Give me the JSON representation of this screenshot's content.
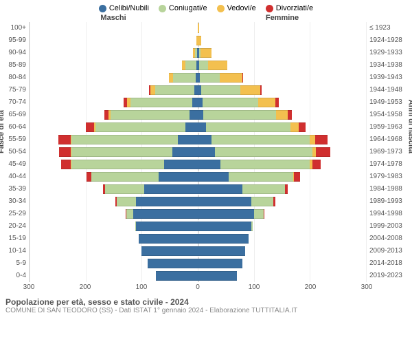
{
  "legend": [
    {
      "label": "Celibi/Nubili",
      "color": "#3b6fa0"
    },
    {
      "label": "Coniugati/e",
      "color": "#b8d49b"
    },
    {
      "label": "Vedovi/e",
      "color": "#f3c04f"
    },
    {
      "label": "Divorziati/e",
      "color": "#d02f2f"
    }
  ],
  "headers": {
    "left": "Maschi",
    "right": "Femmine"
  },
  "axis_labels": {
    "left": "Fasce di età",
    "right": "Anni di nascita"
  },
  "footer": {
    "title": "Popolazione per età, sesso e stato civile - 2024",
    "subtitle": "COMUNE DI SAN TEODORO (SS) - Dati ISTAT 1° gennaio 2024 - Elaborazione TUTTITALIA.IT"
  },
  "xaxis": {
    "max": 300,
    "ticks": [
      300,
      200,
      100,
      0,
      100,
      200,
      300
    ]
  },
  "age_groups": [
    "100+",
    "95-99",
    "90-94",
    "85-89",
    "80-84",
    "75-79",
    "70-74",
    "65-69",
    "60-64",
    "55-59",
    "50-54",
    "45-49",
    "40-44",
    "35-39",
    "30-34",
    "25-29",
    "20-24",
    "15-19",
    "10-14",
    "5-9",
    "0-4"
  ],
  "birth_years": [
    "≤ 1923",
    "1924-1928",
    "1929-1933",
    "1934-1938",
    "1939-1943",
    "1944-1948",
    "1949-1953",
    "1954-1958",
    "1959-1963",
    "1964-1968",
    "1969-1973",
    "1974-1978",
    "1979-1983",
    "1984-1988",
    "1989-1993",
    "1994-1998",
    "1999-2003",
    "2004-2008",
    "2009-2013",
    "2014-2018",
    "2019-2023"
  ],
  "rows": [
    {
      "m": {
        "single": 0,
        "married": 0,
        "widowed": 0,
        "divorced": 0
      },
      "f": {
        "single": 0,
        "married": 0,
        "widowed": 2,
        "divorced": 0
      }
    },
    {
      "m": {
        "single": 0,
        "married": 0,
        "widowed": 2,
        "divorced": 0
      },
      "f": {
        "single": 0,
        "married": 0,
        "widowed": 6,
        "divorced": 0
      }
    },
    {
      "m": {
        "single": 1,
        "married": 4,
        "widowed": 3,
        "divorced": 0
      },
      "f": {
        "single": 2,
        "married": 3,
        "widowed": 20,
        "divorced": 0
      }
    },
    {
      "m": {
        "single": 2,
        "married": 20,
        "widowed": 6,
        "divorced": 0
      },
      "f": {
        "single": 3,
        "married": 15,
        "widowed": 35,
        "divorced": 0
      }
    },
    {
      "m": {
        "single": 4,
        "married": 40,
        "widowed": 8,
        "divorced": 0
      },
      "f": {
        "single": 4,
        "married": 35,
        "widowed": 40,
        "divorced": 2
      }
    },
    {
      "m": {
        "single": 6,
        "married": 70,
        "widowed": 8,
        "divorced": 3
      },
      "f": {
        "single": 6,
        "married": 70,
        "widowed": 35,
        "divorced": 3
      }
    },
    {
      "m": {
        "single": 10,
        "married": 110,
        "widowed": 6,
        "divorced": 6
      },
      "f": {
        "single": 8,
        "married": 100,
        "widowed": 30,
        "divorced": 6
      }
    },
    {
      "m": {
        "single": 15,
        "married": 140,
        "widowed": 4,
        "divorced": 8
      },
      "f": {
        "single": 10,
        "married": 130,
        "widowed": 20,
        "divorced": 8
      }
    },
    {
      "m": {
        "single": 22,
        "married": 160,
        "widowed": 3,
        "divorced": 15
      },
      "f": {
        "single": 15,
        "married": 150,
        "widowed": 15,
        "divorced": 12
      }
    },
    {
      "m": {
        "single": 35,
        "married": 190,
        "widowed": 2,
        "divorced": 22
      },
      "f": {
        "single": 25,
        "married": 175,
        "widowed": 10,
        "divorced": 22
      }
    },
    {
      "m": {
        "single": 45,
        "married": 180,
        "widowed": 2,
        "divorced": 20
      },
      "f": {
        "single": 30,
        "married": 175,
        "widowed": 6,
        "divorced": 25
      }
    },
    {
      "m": {
        "single": 60,
        "married": 165,
        "widowed": 1,
        "divorced": 18
      },
      "f": {
        "single": 40,
        "married": 160,
        "widowed": 4,
        "divorced": 15
      }
    },
    {
      "m": {
        "single": 70,
        "married": 120,
        "widowed": 0,
        "divorced": 8
      },
      "f": {
        "single": 55,
        "married": 115,
        "widowed": 2,
        "divorced": 10
      }
    },
    {
      "m": {
        "single": 95,
        "married": 70,
        "widowed": 0,
        "divorced": 4
      },
      "f": {
        "single": 80,
        "married": 75,
        "widowed": 1,
        "divorced": 5
      }
    },
    {
      "m": {
        "single": 110,
        "married": 35,
        "widowed": 0,
        "divorced": 2
      },
      "f": {
        "single": 95,
        "married": 40,
        "widowed": 0,
        "divorced": 3
      }
    },
    {
      "m": {
        "single": 115,
        "married": 12,
        "widowed": 0,
        "divorced": 1
      },
      "f": {
        "single": 100,
        "married": 18,
        "widowed": 0,
        "divorced": 1
      }
    },
    {
      "m": {
        "single": 110,
        "married": 2,
        "widowed": 0,
        "divorced": 0
      },
      "f": {
        "single": 95,
        "married": 3,
        "widowed": 0,
        "divorced": 0
      }
    },
    {
      "m": {
        "single": 105,
        "married": 0,
        "widowed": 0,
        "divorced": 0
      },
      "f": {
        "single": 90,
        "married": 0,
        "widowed": 0,
        "divorced": 0
      }
    },
    {
      "m": {
        "single": 100,
        "married": 0,
        "widowed": 0,
        "divorced": 0
      },
      "f": {
        "single": 85,
        "married": 0,
        "widowed": 0,
        "divorced": 0
      }
    },
    {
      "m": {
        "single": 90,
        "married": 0,
        "widowed": 0,
        "divorced": 0
      },
      "f": {
        "single": 80,
        "married": 0,
        "widowed": 0,
        "divorced": 0
      }
    },
    {
      "m": {
        "single": 75,
        "married": 0,
        "widowed": 0,
        "divorced": 0
      },
      "f": {
        "single": 70,
        "married": 0,
        "widowed": 0,
        "divorced": 0
      }
    }
  ],
  "colors": {
    "single": "#3b6fa0",
    "married": "#b8d49b",
    "widowed": "#f3c04f",
    "divorced": "#d02f2f",
    "grid": "#eeeeee",
    "text": "#555555"
  }
}
